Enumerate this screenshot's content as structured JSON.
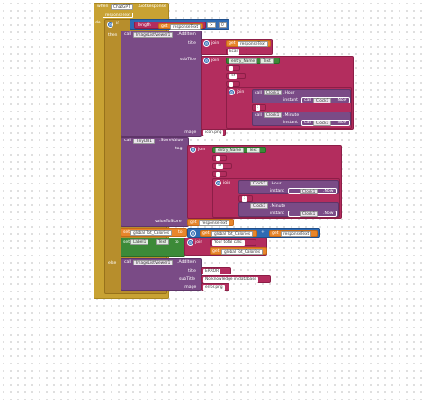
{
  "event": {
    "when": "when",
    "component": "ChatGPT",
    "event_name": ".GotResponse",
    "param": "responseText",
    "do": "do"
  },
  "if_block": {
    "if": "if",
    "then": "then",
    "else": "else",
    "condition": {
      "length": "length",
      "get": "get",
      "var": "responseText",
      "op": ">",
      "value": "0"
    }
  },
  "call1": {
    "call": "call",
    "component": "ImageListViewer1",
    "method": ".AddItem",
    "title": "title",
    "subtitle": "subTitle",
    "image": "image",
    "title_get": "get",
    "title_var": "responseText",
    "title_join": "join",
    "kcal": " kcal",
    "subtitle_join": "join",
    "entry_name_get": "entry_Name",
    "text_prop": "Text",
    "space1": " ",
    "at": "at",
    "space2": " ",
    "inner_join": "join",
    "hour_call": "call",
    "clock": "Clock1",
    "hour": ".Hour",
    "instant": "instant",
    "now": ".Now",
    "colon": ":",
    "minute": ".Minute",
    "image_val": "icon.png"
  },
  "call2": {
    "call": "call",
    "component": "TinyDB1",
    "method": ".StoreValue",
    "tag": "tag",
    "value_to_store": "valueToStore",
    "join": "join",
    "entry_name_get": "entry_Name",
    "text_prop": "Text",
    "space1": " ",
    "at": "at",
    "space2": " ",
    "inner_join": "join",
    "clock": "Clock1",
    "hour": ".Hour",
    "instant": "instant",
    "now": ".Now",
    "colon": ":",
    "minute": ".Minute",
    "get": "get",
    "var": "responseText"
  },
  "set1": {
    "set": "set",
    "var": "global Tot_Calories",
    "to": "to",
    "get": "get",
    "get_var": "global Tot_Calories",
    "op": "+",
    "get2": "get",
    "get2_var": "responseText"
  },
  "set2": {
    "set": "set",
    "component": "Label1",
    "prop": "Text",
    "to": "to",
    "join": "join",
    "prefix": "Your total cals: ",
    "get": "get",
    "get_var": "global Tot_Calories"
  },
  "call3": {
    "call": "call",
    "component": "ImageListViewer1",
    "method": ".AddItem",
    "title": "title",
    "subtitle": "subTitle",
    "image": "image",
    "title_val": "ERROR",
    "subtitle_val": "No knowledge in database",
    "image_val": "error.png"
  },
  "colors": {
    "event": "#c8a233",
    "control": "#b78e2c",
    "procedure": "#7a4b86",
    "compare": "#2e6bb4",
    "text": "#b32d5e",
    "variable": "#e8862b",
    "setter": "#3c8a38"
  }
}
